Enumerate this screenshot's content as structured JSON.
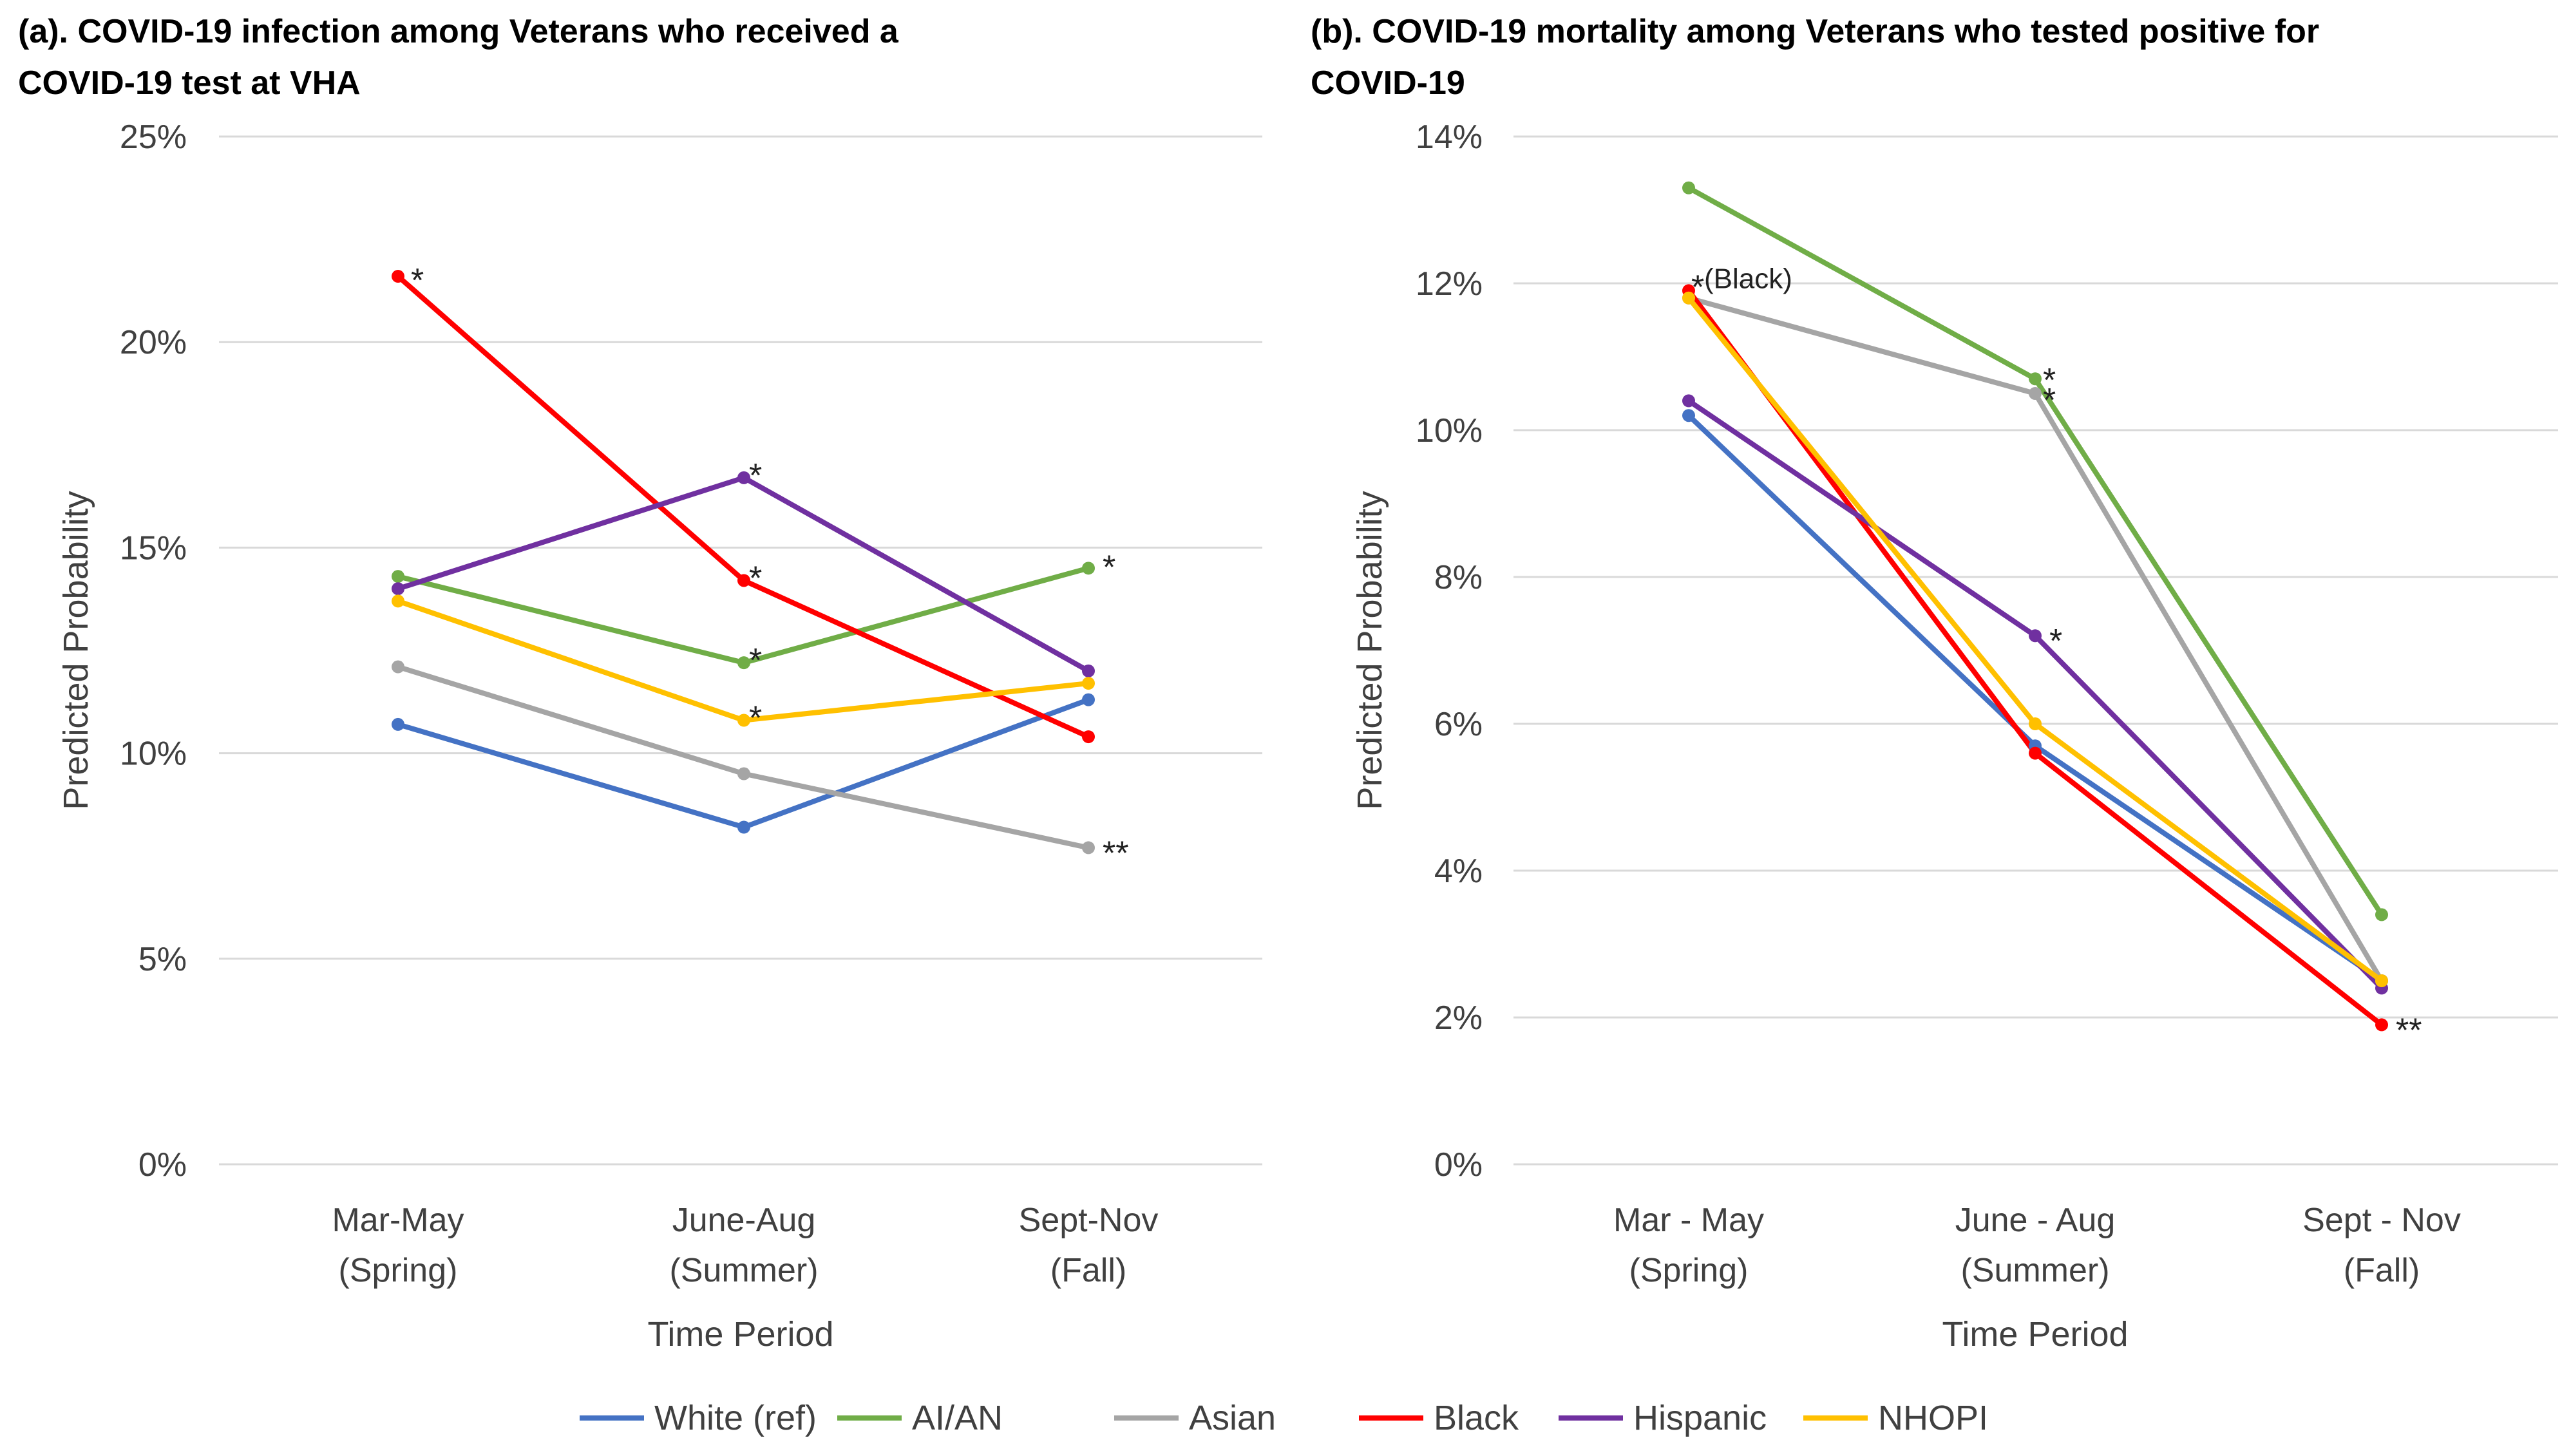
{
  "chart_data": [
    {
      "type": "line",
      "panel": "a",
      "title": "(a). COVID-19 infection among Veterans who received a COVID-19 test at VHA",
      "title_lines": [
        "(a). COVID-19 infection among Veterans who received a",
        "COVID-19 test at VHA"
      ],
      "xlabel": "Time Period",
      "ylabel": "Predicted Probability",
      "categories": [
        [
          "Mar-May",
          "(Spring)"
        ],
        [
          "June-Aug",
          "(Summer)"
        ],
        [
          "Sept-Nov",
          "(Fall)"
        ]
      ],
      "ylim": [
        0,
        25
      ],
      "yticks": [
        0,
        5,
        10,
        15,
        20,
        25
      ],
      "ytick_labels": [
        "0%",
        "5%",
        "10%",
        "15%",
        "20%",
        "25%"
      ],
      "grid": true,
      "series": [
        {
          "name": "White (ref)",
          "values": [
            10.7,
            8.2,
            11.3
          ]
        },
        {
          "name": "AI/AN",
          "values": [
            14.3,
            12.2,
            14.5
          ]
        },
        {
          "name": "Asian",
          "values": [
            12.1,
            9.5,
            7.7
          ]
        },
        {
          "name": "Black",
          "values": [
            21.6,
            14.2,
            10.4
          ]
        },
        {
          "name": "Hispanic",
          "values": [
            14.0,
            16.7,
            12.0
          ]
        },
        {
          "name": "NHOPI",
          "values": [
            13.7,
            10.8,
            11.7
          ]
        }
      ],
      "annotations": [
        {
          "text": "*",
          "series": "Black",
          "index": 0
        },
        {
          "text": "*",
          "series": "Hispanic",
          "index": 1
        },
        {
          "text": "*",
          "series": "Black",
          "index": 1
        },
        {
          "text": "*",
          "series": "AI/AN",
          "index": 1
        },
        {
          "text": "*",
          "series": "NHOPI",
          "index": 1
        },
        {
          "text": "*",
          "series": "AI/AN",
          "index": 2
        },
        {
          "text": "**",
          "series": "Asian",
          "index": 2
        }
      ]
    },
    {
      "type": "line",
      "panel": "b",
      "title": "(b). COVID-19 mortality among Veterans who tested positive for COVID-19",
      "title_lines": [
        "(b). COVID-19 mortality among Veterans who tested positive for",
        "COVID-19"
      ],
      "xlabel": "Time Period",
      "ylabel": "Predicted Probability",
      "categories": [
        [
          "Mar - May",
          "(Spring)"
        ],
        [
          "June - Aug",
          "(Summer)"
        ],
        [
          "Sept - Nov",
          "(Fall)"
        ]
      ],
      "ylim": [
        0,
        14
      ],
      "yticks": [
        0,
        2,
        4,
        6,
        8,
        10,
        12,
        14
      ],
      "ytick_labels": [
        "0%",
        "2%",
        "4%",
        "6%",
        "8%",
        "10%",
        "12%",
        "14%"
      ],
      "grid": true,
      "series": [
        {
          "name": "White (ref)",
          "values": [
            10.2,
            5.7,
            2.5
          ]
        },
        {
          "name": "AI/AN",
          "values": [
            13.3,
            10.7,
            3.4
          ]
        },
        {
          "name": "Asian",
          "values": [
            11.8,
            10.5,
            2.5
          ]
        },
        {
          "name": "Black",
          "values": [
            11.9,
            5.6,
            1.9
          ]
        },
        {
          "name": "Hispanic",
          "values": [
            10.4,
            7.2,
            2.4
          ]
        },
        {
          "name": "NHOPI",
          "values": [
            11.8,
            6.0,
            2.5
          ]
        }
      ],
      "annotations": [
        {
          "text": "*",
          "series": "Black",
          "index": 0
        },
        {
          "text": "(Black)",
          "series": "Black",
          "index": 0
        },
        {
          "text": "*",
          "series": "AI/AN",
          "index": 1
        },
        {
          "text": "*",
          "series": "Asian",
          "index": 1
        },
        {
          "text": "*",
          "series": "Hispanic",
          "index": 1
        },
        {
          "text": "**",
          "series": "Black",
          "index": 2
        }
      ]
    }
  ],
  "legend": {
    "placement": "bottom-center",
    "entries": [
      {
        "name": "White (ref)",
        "color": "#4472C4"
      },
      {
        "name": "AI/AN",
        "color": "#70AD47"
      },
      {
        "name": "Asian",
        "color": "#A5A5A5"
      },
      {
        "name": "Black",
        "color": "#FF0000"
      },
      {
        "name": "Hispanic",
        "color": "#7030A0"
      },
      {
        "name": "NHOPI",
        "color": "#FFC000"
      }
    ]
  },
  "colors": {
    "White (ref)": "#4472C4",
    "AI/AN": "#70AD47",
    "Asian": "#A5A5A5",
    "Black": "#FF0000",
    "Hispanic": "#7030A0",
    "NHOPI": "#FFC000",
    "grid": "#D9D9D9"
  }
}
